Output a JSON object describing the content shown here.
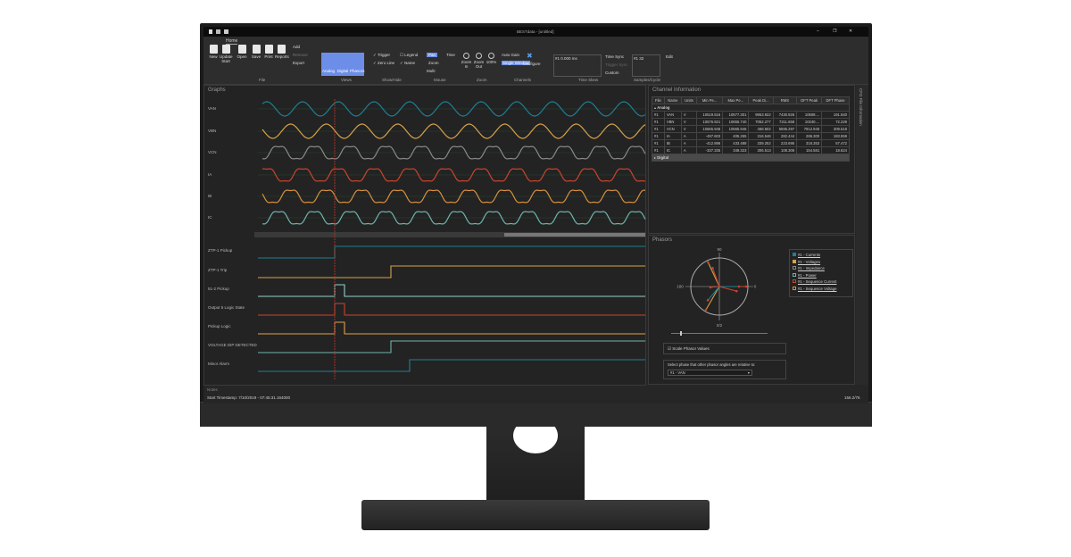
{
  "window": {
    "title": "BESTdata - [untitled]",
    "controls": [
      "–",
      "❐",
      "✕"
    ]
  },
  "ribbon": {
    "tab": "Home",
    "file": {
      "group": "File",
      "buttons": [
        "New",
        "Update Start",
        "Open",
        "Save",
        "Print",
        "Reports"
      ],
      "small": [
        "Add",
        "Remove",
        "Export"
      ]
    },
    "views": {
      "group": "Views",
      "buttons": [
        "Analog",
        "Digital",
        "Phasors"
      ]
    },
    "showhide": {
      "group": "Show/Hide",
      "items": [
        {
          "label": "Trigger",
          "checked": true
        },
        {
          "label": "Legend",
          "checked": false
        },
        {
          "label": "Zero Line",
          "checked": true
        },
        {
          "label": "Name",
          "checked": true
        }
      ]
    },
    "mouse": {
      "group": "Mouse",
      "items": [
        "Pan",
        "Time",
        "Zoom",
        "Multi"
      ]
    },
    "zoom": {
      "group": "Zoom",
      "buttons": [
        "Zoom In",
        "Zoom Out",
        "100%"
      ]
    },
    "channels": {
      "group": "Channels",
      "items": [
        "Auto Gain",
        "Single Window",
        "Configure"
      ]
    },
    "timeskew": {
      "group": "Time Skew",
      "value": "#1  0.000 ms",
      "items": [
        "Time Sync",
        "Trigger Sync",
        "Custom"
      ]
    },
    "samples": {
      "group": "Samples/Cycle",
      "value": "#1  32",
      "edit": "Edit"
    }
  },
  "graphs": {
    "title": "Graphs",
    "analog": [
      {
        "name": "VAN",
        "color": "#1f7f93"
      },
      {
        "name": "VBN",
        "color": "#d7a24a"
      },
      {
        "name": "VCN",
        "color": "#8a8a8a"
      },
      {
        "name": "IA",
        "color": "#c8442c"
      },
      {
        "name": "IB",
        "color": "#d7903e"
      },
      {
        "name": "IC",
        "color": "#6fb3ad"
      }
    ],
    "digital": [
      {
        "name": "ZTP-1 Pickup",
        "color": "#1f7f93"
      },
      {
        "name": "ZTP-1 Trip",
        "color": "#d7a24a"
      },
      {
        "name": "51-2 Pickup",
        "color": "#8fd0cc"
      },
      {
        "name": "Output 5 Logic State",
        "color": "#c8442c"
      },
      {
        "name": "Pickup Logic",
        "color": "#e0a04a"
      },
      {
        "name": "VOLTAGE DIP DETECTED",
        "color": "#6fb3ad"
      },
      {
        "name": "Minor Alarm",
        "color": "#1f7f93"
      }
    ],
    "cursor_color": "#c0392b"
  },
  "channel_info": {
    "title": "Channel Information",
    "columns": [
      "File",
      "Name",
      "Units",
      "Min Pe...",
      "Max Pe...",
      "Peak Di...",
      "RMS",
      "DFT Peak",
      "DFT Phase"
    ],
    "group_analog": "Analog",
    "group_digital": "Digital",
    "rows": [
      [
        "#1",
        "VAN",
        "V",
        "10519.516",
        "10577.301",
        "9953.922",
        "7430.926",
        "10508....",
        "191.640"
      ],
      [
        "#1",
        "VBN",
        "V",
        "10576.921",
        "10655.740",
        "7052.277",
        "7211.658",
        "10240....",
        "72.229"
      ],
      [
        "#1",
        "VCN",
        "V",
        "10665.946",
        "10665.946",
        "468.602",
        "5595.297",
        "7912.945",
        "309.518"
      ],
      [
        "#1",
        "IA",
        "A",
        "-497.603",
        "405.265",
        "316.546",
        "282.444",
        "286.300",
        "183.559"
      ],
      [
        "#1",
        "IB",
        "A",
        "-412.896",
        "433.488",
        "339.252",
        "223.695",
        "316.353",
        "57.472"
      ],
      [
        "#1",
        "IC",
        "A",
        "-337.335",
        "349.323",
        "306.513",
        "108.306",
        "154.581",
        "18.624"
      ]
    ]
  },
  "phasors": {
    "title": "Phasors",
    "axis": {
      "top": "90",
      "left": "180",
      "right": "0",
      "bottom": "0/2"
    },
    "legend": [
      {
        "label": "#1 - Currents",
        "checked": true,
        "color": "#1f7f93"
      },
      {
        "label": "#1 - Voltages",
        "checked": true,
        "color": "#d7a24a"
      },
      {
        "label": "#1 - Impedance",
        "checked": false,
        "color": "#888"
      },
      {
        "label": "#1 - Power",
        "checked": false,
        "color": "#6fb3ad"
      },
      {
        "label": "#1 - Sequence Current",
        "checked": false,
        "color": "#c8442c"
      },
      {
        "label": "#1 - Sequence Voltage",
        "checked": false,
        "color": "#d7903e"
      }
    ],
    "scale_label": "Scale Phasor Values",
    "scale_checked": true,
    "relative_label": "Select phase that other phasor angles are relative to:",
    "relative_value": "#1 - VAN"
  },
  "side_tab": "CFG File Information",
  "status": {
    "notes": "Notes",
    "timestamp": "Start Timestamp: 7/10/2019 - 07:45:31.164000",
    "right": "156.2/76"
  }
}
